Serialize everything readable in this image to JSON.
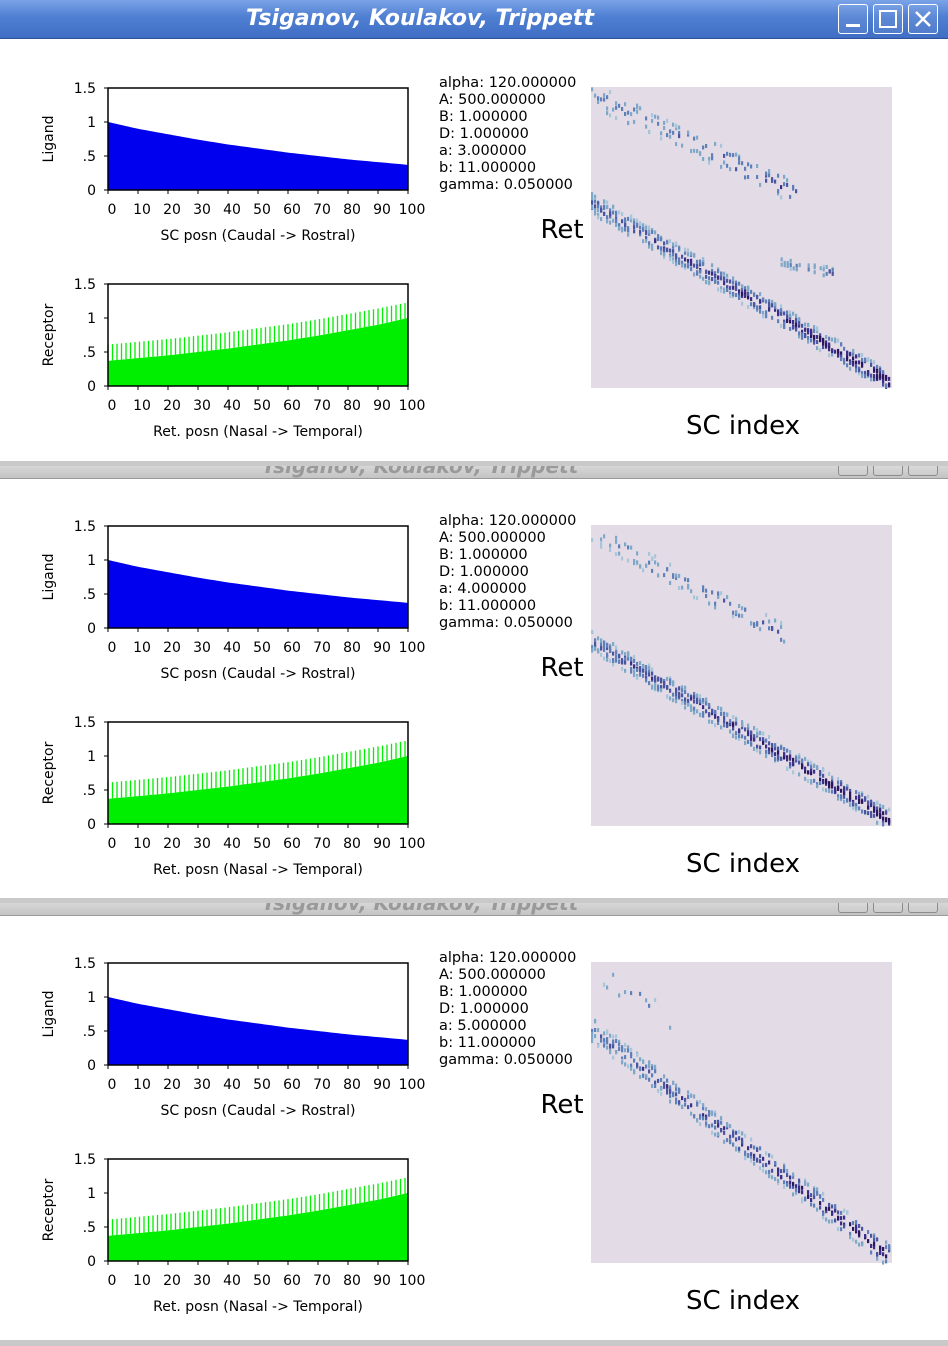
{
  "windows": [
    {
      "title": "Tsiganov, Koulakov, Trippett",
      "active": true,
      "params": [
        "alpha: 120.000000",
        "A: 500.000000",
        "B: 1.000000",
        "D: 1.000000",
        "a: 3.000000",
        "b: 11.000000",
        "gamma: 0.050000"
      ],
      "line_a": 3
    },
    {
      "title": "Tsiganov, Koulakov, Trippett",
      "active": false,
      "params": [
        "alpha: 120.000000",
        "A: 500.000000",
        "B: 1.000000",
        "D: 1.000000",
        "a: 4.000000",
        "b: 11.000000",
        "gamma: 0.050000"
      ],
      "line_a": 4
    },
    {
      "title": "Tsiganov, Koulakov, Trippett",
      "active": false,
      "params": [
        "alpha: 120.000000",
        "A: 500.000000",
        "B: 1.000000",
        "D: 1.000000",
        "a: 5.000000",
        "b: 11.000000",
        "gamma: 0.050000"
      ],
      "line_a": 5
    }
  ],
  "charts": {
    "ligand": {
      "type": "area",
      "ylabel": "Ligand",
      "xlabel": "SC posn (Caudal -> Rostral)",
      "xticks": [
        "0",
        "10",
        "20",
        "30",
        "40",
        "50",
        "60",
        "70",
        "80",
        "90",
        "100"
      ],
      "yticks": [
        "0",
        ".5",
        "1",
        "1.5"
      ],
      "ylim": [
        0,
        1.5
      ],
      "xlim": [
        0,
        100
      ],
      "x": [
        0,
        10,
        20,
        30,
        40,
        50,
        60,
        70,
        80,
        90,
        100
      ],
      "values": [
        1.0,
        0.9,
        0.82,
        0.74,
        0.67,
        0.61,
        0.55,
        0.5,
        0.45,
        0.41,
        0.37
      ],
      "color": "#0000ee"
    },
    "receptor": {
      "type": "area",
      "ylabel": "Receptor",
      "xlabel": "Ret. posn (Nasal -> Temporal)",
      "xticks": [
        "0",
        "10",
        "20",
        "30",
        "40",
        "50",
        "60",
        "70",
        "80",
        "90",
        "100"
      ],
      "yticks": [
        "0",
        ".5",
        "1",
        "1.5"
      ],
      "ylim": [
        0,
        1.5
      ],
      "xlim": [
        0,
        100
      ],
      "x": [
        0,
        10,
        20,
        30,
        40,
        50,
        60,
        70,
        80,
        90,
        100
      ],
      "solid_values": [
        0.37,
        0.41,
        0.45,
        0.5,
        0.55,
        0.61,
        0.67,
        0.74,
        0.82,
        0.9,
        1.0
      ],
      "striped_values": [
        0.61,
        0.65,
        0.69,
        0.74,
        0.79,
        0.85,
        0.91,
        0.98,
        1.06,
        1.14,
        1.23
      ],
      "color": "#00ee00"
    },
    "heatmap": {
      "type": "heatmap",
      "ylabel": "Ret",
      "xlabel": "SC index",
      "background": "#e3dce6"
    }
  }
}
